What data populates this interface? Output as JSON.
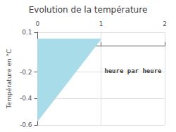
{
  "chart_data": {
    "type": "polygon",
    "title": "Evolution de la température",
    "ylabel": "Température en °C",
    "x": [
      0,
      0,
      1,
      0
    ],
    "values": [
      0.05,
      -0.57,
      0.05,
      0.05
    ],
    "color": "#a8dce8",
    "xlim": [
      0,
      2
    ],
    "ylim": [
      -0.6,
      0.1
    ],
    "xticks": [
      0,
      1,
      2
    ],
    "yticks": [
      0.1,
      -0.2,
      -0.4,
      -0.6
    ],
    "grid": true,
    "annotations": [
      {
        "text": "heure par heure",
        "x": 1.05,
        "y": -0.19
      }
    ]
  }
}
